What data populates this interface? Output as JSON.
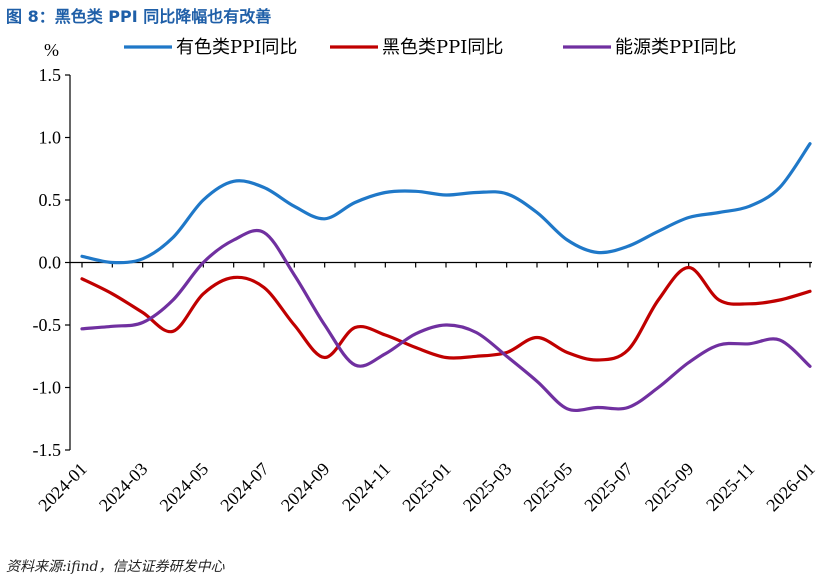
{
  "title": "图 8：黑色类 PPI 同比降幅也有改善",
  "source": "资料来源:ifind，信达证券研发中心",
  "chart_data": {
    "type": "line",
    "title": "图 8：黑色类 PPI 同比降幅也有改善",
    "ylabel": "%",
    "xlabel": "",
    "ylim": [
      -1.5,
      1.5
    ],
    "yticks": [
      1.5,
      1.0,
      0.5,
      0.0,
      -0.5,
      -1.0,
      -1.5
    ],
    "ytick_labels": [
      "1.5",
      "1.0",
      "0.5",
      "0.0",
      "-0.5",
      "-1.0",
      "-1.5"
    ],
    "legend_position": "top",
    "categories": [
      "2024-01",
      "2024-02",
      "2024-03",
      "2024-04",
      "2024-05",
      "2024-06",
      "2024-07",
      "2024-08",
      "2024-09",
      "2024-10",
      "2024-11",
      "2024-12",
      "2025-01",
      "2025-02",
      "2025-03",
      "2025-04",
      "2025-05",
      "2025-06",
      "2025-07",
      "2025-08",
      "2025-09",
      "2025-10",
      "2025-11",
      "2025-12",
      "2026-01"
    ],
    "tick_labels": [
      "2024-01",
      "2024-03",
      "2024-05",
      "2024-07",
      "2024-09",
      "2024-11",
      "2025-01",
      "2025-03",
      "2025-05",
      "2025-07",
      "2025-09",
      "2025-11",
      "2026-01"
    ],
    "series": [
      {
        "name": "有色类PPI同比",
        "color": "#1f78c8",
        "values": [
          0.05,
          0.0,
          0.03,
          0.2,
          0.5,
          0.65,
          0.6,
          0.45,
          0.35,
          0.48,
          0.56,
          0.57,
          0.54,
          0.56,
          0.55,
          0.4,
          0.18,
          0.08,
          0.13,
          0.25,
          0.36,
          0.4,
          0.45,
          0.6,
          0.95
        ]
      },
      {
        "name": "黑色类PPI同比",
        "color": "#c00000",
        "values": [
          -0.13,
          -0.25,
          -0.4,
          -0.55,
          -0.25,
          -0.12,
          -0.2,
          -0.5,
          -0.76,
          -0.52,
          -0.58,
          -0.68,
          -0.76,
          -0.75,
          -0.72,
          -0.6,
          -0.72,
          -0.78,
          -0.7,
          -0.3,
          -0.04,
          -0.3,
          -0.33,
          -0.3,
          -0.23
        ]
      },
      {
        "name": "能源类PPI同比",
        "color": "#7030a0",
        "values": [
          -0.53,
          -0.51,
          -0.48,
          -0.3,
          0.0,
          0.18,
          0.24,
          -0.1,
          -0.5,
          -0.82,
          -0.73,
          -0.57,
          -0.5,
          -0.56,
          -0.75,
          -0.95,
          -1.17,
          -1.16,
          -1.16,
          -1.0,
          -0.8,
          -0.66,
          -0.65,
          -0.62,
          -0.83
        ]
      }
    ]
  }
}
